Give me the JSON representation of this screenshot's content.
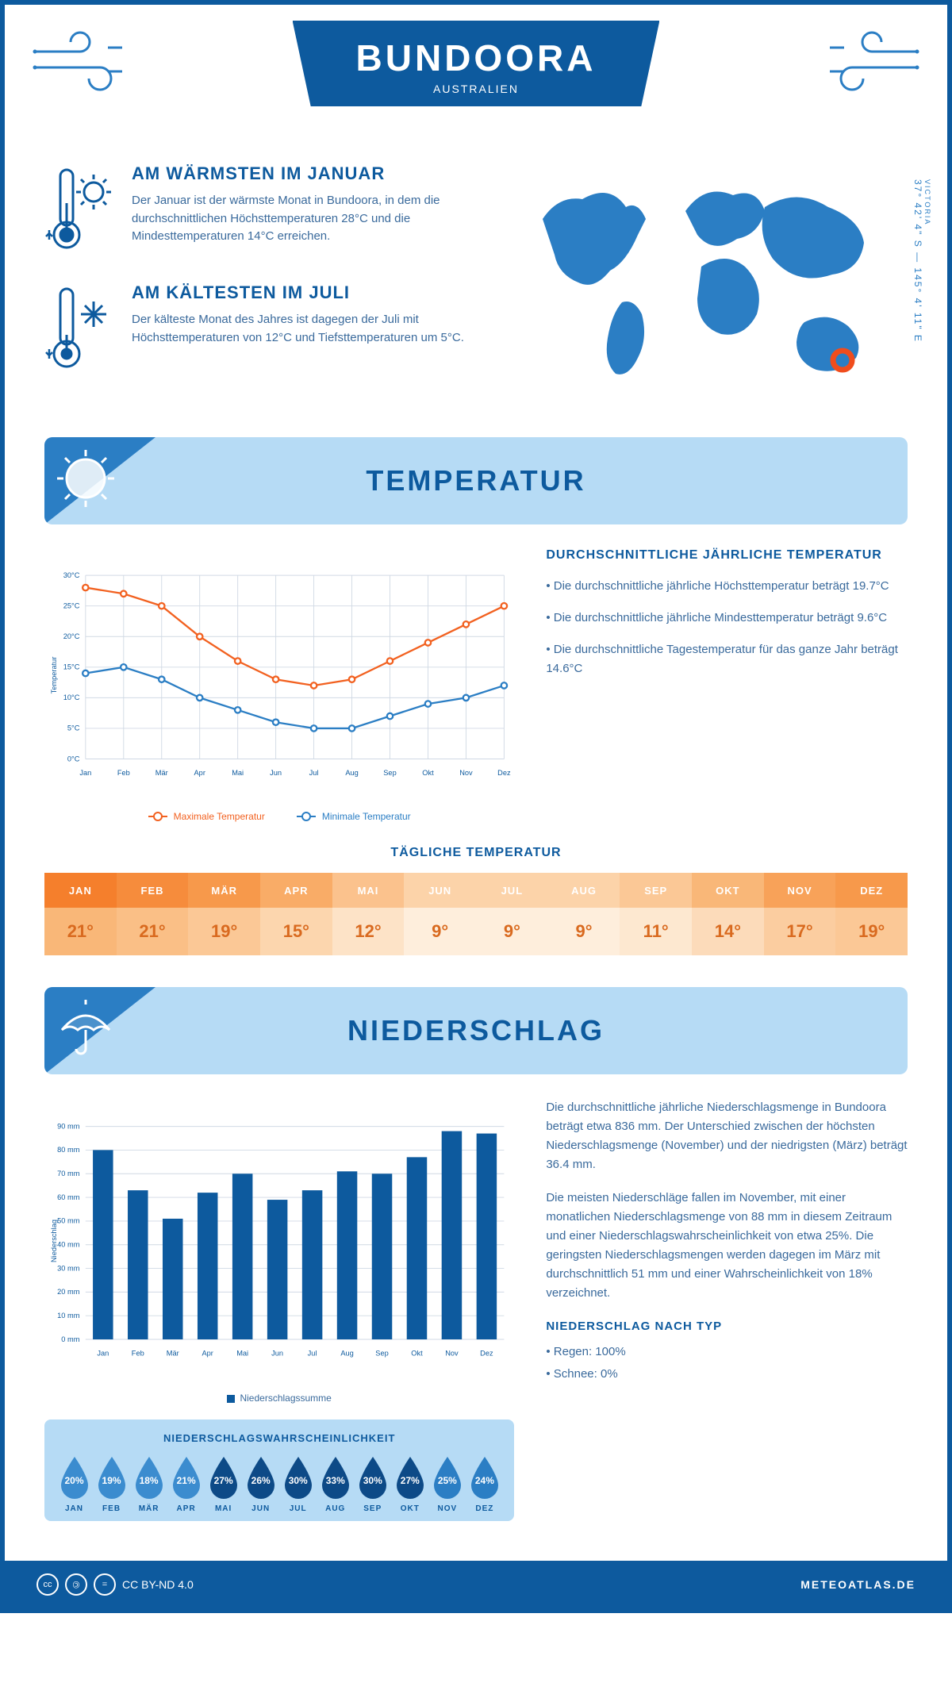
{
  "header": {
    "city": "BUNDOORA",
    "country": "AUSTRALIEN"
  },
  "coords": {
    "region": "VICTORIA",
    "lat": "37° 42' 4\" S",
    "lon": "145° 4' 11\" E"
  },
  "warmest": {
    "title": "AM WÄRMSTEN IM JANUAR",
    "text": "Der Januar ist der wärmste Monat in Bundoora, in dem die durchschnittlichen Höchsttemperaturen 28°C und die Mindesttemperaturen 14°C erreichen."
  },
  "coldest": {
    "title": "AM KÄLTESTEN IM JULI",
    "text": "Der kälteste Monat des Jahres ist dagegen der Juli mit Höchsttemperaturen von 12°C und Tiefsttemperaturen um 5°C."
  },
  "temp_section": {
    "title": "TEMPERATUR",
    "summary_title": "DURCHSCHNITTLICHE JÄHRLICHE TEMPERATUR",
    "bullets": [
      "• Die durchschnittliche jährliche Höchsttemperatur beträgt 19.7°C",
      "• Die durchschnittliche jährliche Mindesttemperatur beträgt 9.6°C",
      "• Die durchschnittliche Tagestemperatur für das ganze Jahr beträgt 14.6°C"
    ],
    "daily_title": "TÄGLICHE TEMPERATUR"
  },
  "line_chart": {
    "type": "line",
    "months": [
      "Jan",
      "Feb",
      "Mär",
      "Apr",
      "Mai",
      "Jun",
      "Jul",
      "Aug",
      "Sep",
      "Okt",
      "Nov",
      "Dez"
    ],
    "max_series": {
      "label": "Maximale Temperatur",
      "color": "#f26120",
      "values": [
        28,
        27,
        25,
        20,
        16,
        13,
        12,
        13,
        16,
        19,
        22,
        25
      ]
    },
    "min_series": {
      "label": "Minimale Temperatur",
      "color": "#2b7ec4",
      "values": [
        14,
        15,
        13,
        10,
        8,
        6,
        5,
        5,
        7,
        9,
        10,
        12
      ]
    },
    "ylabel": "Temperatur",
    "ylim": [
      0,
      30
    ],
    "ytick_step": 5,
    "grid_color": "#d0d9e4",
    "axis_fontsize": 10,
    "line_width": 2.5,
    "marker_size": 4,
    "background": "#ffffff"
  },
  "temp_table": {
    "months": [
      "JAN",
      "FEB",
      "MÄR",
      "APR",
      "MAI",
      "JUN",
      "JUL",
      "AUG",
      "SEP",
      "OKT",
      "NOV",
      "DEZ"
    ],
    "values": [
      "21°",
      "21°",
      "19°",
      "15°",
      "12°",
      "9°",
      "9°",
      "9°",
      "11°",
      "14°",
      "17°",
      "19°"
    ],
    "header_colors": [
      "#f57f2c",
      "#f68c3c",
      "#f7994b",
      "#f9ac67",
      "#fbc28d",
      "#fcd3a9",
      "#fcd3a9",
      "#fcd3a9",
      "#fbc896",
      "#f9b778",
      "#f8a259",
      "#f7994b"
    ],
    "cell_colors": [
      "#f9b778",
      "#fabf86",
      "#fbc896",
      "#fcd6ae",
      "#fde3c7",
      "#feeedc",
      "#feeedc",
      "#feeedc",
      "#fde8d0",
      "#fcdbba",
      "#fbcda0",
      "#fbc896"
    ],
    "header_text_color": "#ffffff",
    "cell_text_color": "#d96a1f",
    "header_fontsize": 13,
    "cell_fontsize": 22
  },
  "precip_section": {
    "title": "NIEDERSCHLAG",
    "para1": "Die durchschnittliche jährliche Niederschlagsmenge in Bundoora beträgt etwa 836 mm. Der Unterschied zwischen der höchsten Niederschlagsmenge (November) und der niedrigsten (März) beträgt 36.4 mm.",
    "para2": "Die meisten Niederschläge fallen im November, mit einer monatlichen Niederschlagsmenge von 88 mm in diesem Zeitraum und einer Niederschlagswahrscheinlichkeit von etwa 25%. Die geringsten Niederschlagsmengen werden dagegen im März mit durchschnittlich 51 mm und einer Wahrscheinlichkeit von 18% verzeichnet.",
    "type_title": "NIEDERSCHLAG NACH TYP",
    "type_bullets": [
      "• Regen: 100%",
      "• Schnee: 0%"
    ]
  },
  "bar_chart": {
    "type": "bar",
    "months": [
      "Jan",
      "Feb",
      "Mär",
      "Apr",
      "Mai",
      "Jun",
      "Jul",
      "Aug",
      "Sep",
      "Okt",
      "Nov",
      "Dez"
    ],
    "values": [
      80,
      63,
      51,
      62,
      70,
      59,
      63,
      71,
      70,
      77,
      88,
      87
    ],
    "bar_color": "#0d5a9e",
    "ylabel": "Niederschlag",
    "ylim": [
      0,
      90
    ],
    "ytick_step": 10,
    "grid_color": "#d0d9e4",
    "bar_width": 0.58,
    "legend": "Niederschlagssumme",
    "axis_fontsize": 10
  },
  "prob": {
    "title": "NIEDERSCHLAGSWAHRSCHEINLICHKEIT",
    "months": [
      "JAN",
      "FEB",
      "MÄR",
      "APR",
      "MAI",
      "JUN",
      "JUL",
      "AUG",
      "SEP",
      "OKT",
      "NOV",
      "DEZ"
    ],
    "pct": [
      "20%",
      "19%",
      "18%",
      "21%",
      "27%",
      "26%",
      "30%",
      "33%",
      "30%",
      "27%",
      "25%",
      "24%"
    ],
    "colors": [
      "#3b8ccf",
      "#3b8ccf",
      "#3b8ccf",
      "#3b8ccf",
      "#0d4a87",
      "#0d4a87",
      "#0d4a87",
      "#0d4a87",
      "#0d4a87",
      "#0d4a87",
      "#2b7ec4",
      "#2b7ec4"
    ],
    "box_bg": "#b6dbf5",
    "text_color": "#ffffff",
    "month_color": "#0d5a9e"
  },
  "footer": {
    "license": "CC BY-ND 4.0",
    "brand": "METEOATLAS.DE"
  },
  "palette": {
    "primary": "#0d5a9e",
    "light_blue": "#b6dbf5",
    "mid_blue": "#2b7ec4",
    "text": "#3a6a9c",
    "orange": "#f26120"
  }
}
